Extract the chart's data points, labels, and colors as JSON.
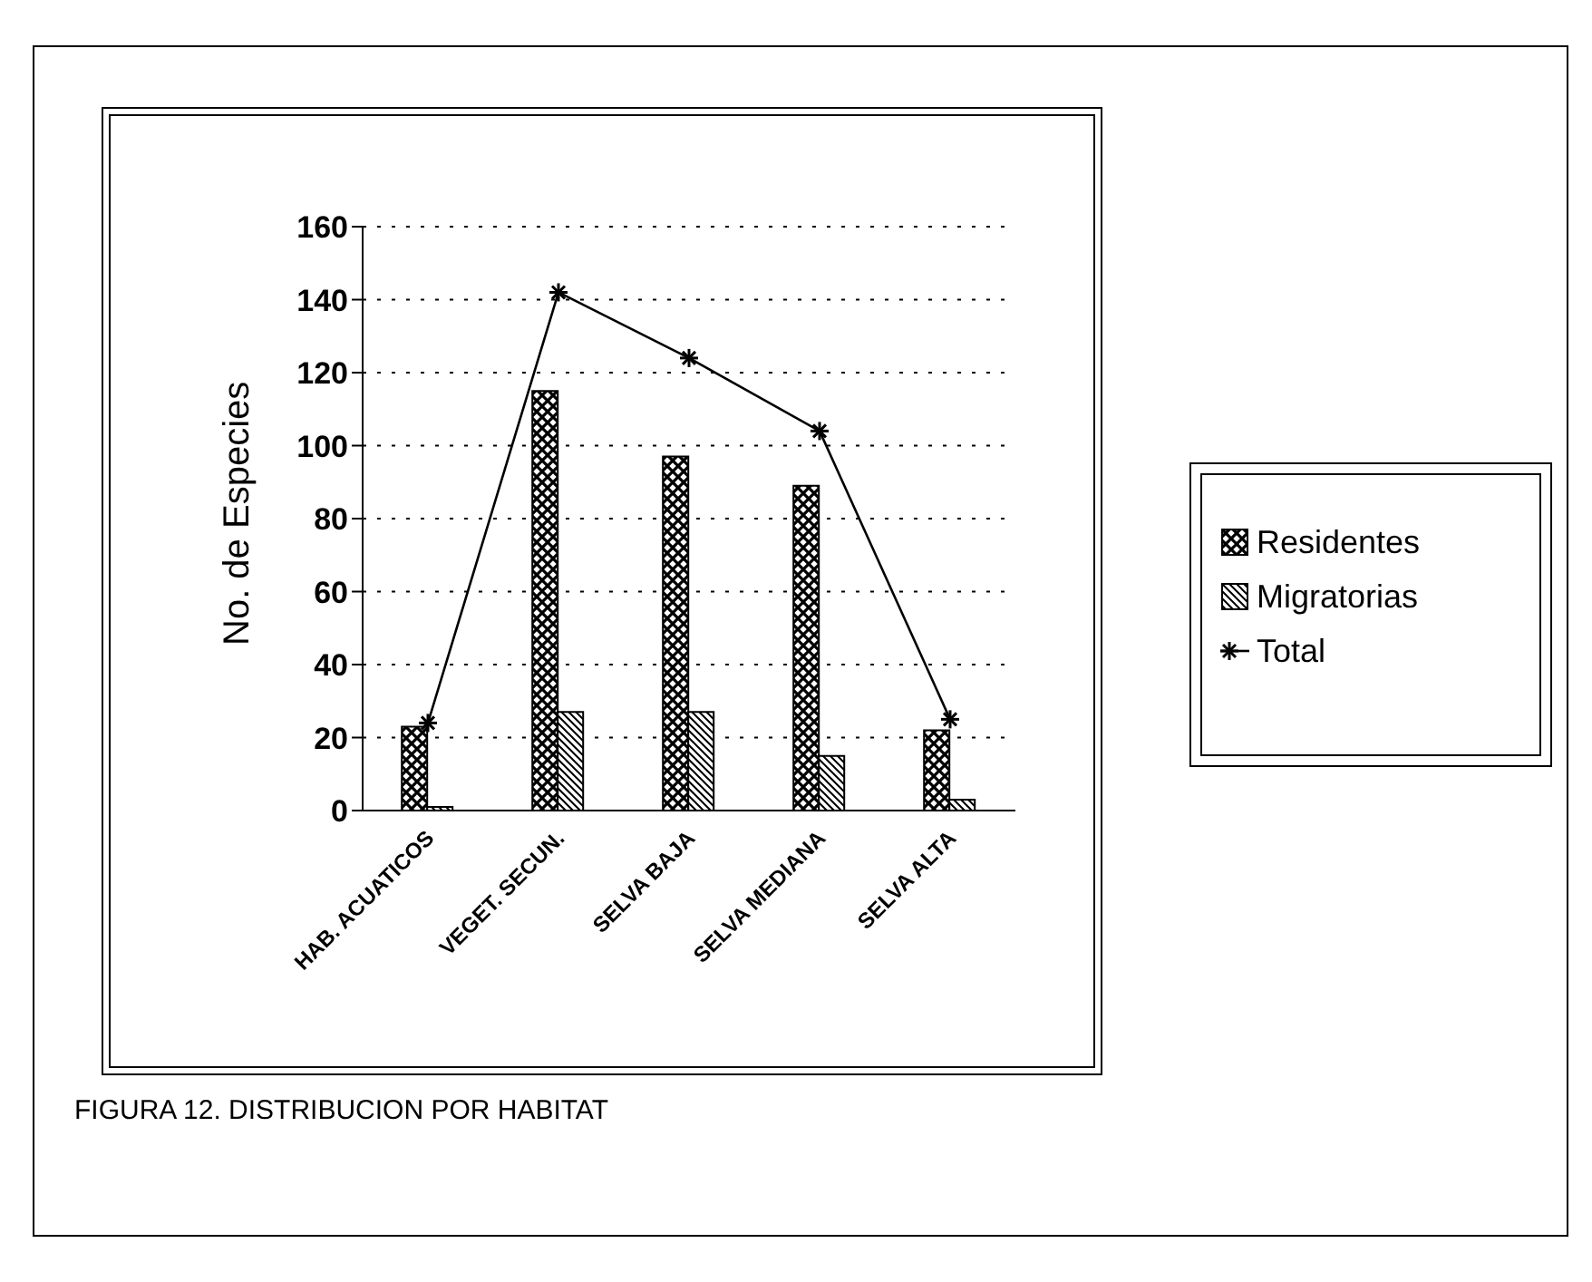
{
  "chart_data": {
    "type": "bar",
    "ylabel": "No. de Especies",
    "categories": [
      "HAB. ACUATICOS",
      "VEGET. SECUN.",
      "SELVA BAJA",
      "SELVA MEDIANA",
      "SELVA ALTA"
    ],
    "series": [
      {
        "name": "Residentes",
        "color": "#000000",
        "values": [
          23,
          115,
          97,
          89,
          22
        ]
      },
      {
        "name": "Migratorias",
        "color": "#000000",
        "values": [
          1,
          27,
          27,
          15,
          3
        ]
      },
      {
        "name": "Total",
        "type": "line",
        "color": "#000000",
        "marker": "cross",
        "values": [
          24,
          142,
          124,
          104,
          25
        ]
      }
    ],
    "ylim": [
      0,
      160
    ],
    "yticks": [
      0,
      20,
      40,
      60,
      80,
      100,
      120,
      140,
      160
    ],
    "grid": "y",
    "legend": "right",
    "annotations": [
      "FIGURA 12. DISTRIBUCION POR HABITAT"
    ]
  }
}
